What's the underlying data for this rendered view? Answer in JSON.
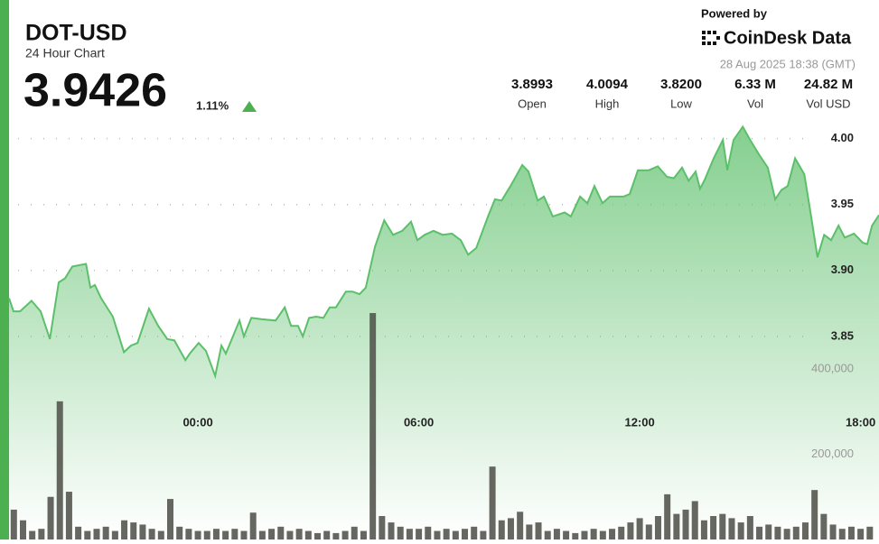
{
  "header": {
    "symbol": "DOT-USD",
    "subtitle": "24 Hour Chart",
    "price": "3.9426",
    "change": "1.11%",
    "powered_by": "Powered by",
    "brand": "CoinDesk Data",
    "timestamp": "28 Aug 2025 18:38 (GMT)"
  },
  "stats": [
    {
      "value": "3.8993",
      "label": "Open"
    },
    {
      "value": "4.0094",
      "label": "High"
    },
    {
      "value": "3.8200",
      "label": "Low"
    },
    {
      "value": "6.33 M",
      "label": "Vol"
    },
    {
      "value": "24.82 M",
      "label": "Vol USD"
    }
  ],
  "chart_data": {
    "type": "area",
    "color": "#5cbf6a",
    "grid": true,
    "xlim": [
      -5.13,
      18.5
    ],
    "xticks": [
      {
        "value": 0,
        "label": "00:00"
      },
      {
        "value": 6,
        "label": "06:00"
      },
      {
        "value": 12,
        "label": "12:00"
      },
      {
        "value": 18,
        "label": "18:00"
      }
    ],
    "ylim": [
      3.696,
      4.01
    ],
    "yticks": [
      3.85,
      {
        "value": 3.9,
        "label": "3.90"
      },
      3.95,
      {
        "value": 4.0,
        "label": "4.00"
      }
    ],
    "y2lim": [
      0,
      971000
    ],
    "y2ticks": [
      {
        "value": 200000,
        "label": "200,000"
      },
      {
        "value": 400000,
        "label": "400,000"
      }
    ],
    "x": [
      -5.13,
      -5.01,
      -4.83,
      -4.52,
      -4.27,
      -4.02,
      -3.78,
      -3.61,
      -3.41,
      -3.04,
      -2.92,
      -2.8,
      -2.63,
      -2.31,
      -2.01,
      -1.82,
      -1.64,
      -1.33,
      -1.08,
      -0.83,
      -0.64,
      -0.34,
      -0.22,
      0.02,
      0.22,
      0.47,
      0.64,
      0.76,
      1.13,
      1.25,
      1.45,
      1.74,
      2.11,
      2.36,
      2.53,
      2.72,
      2.85,
      3.02,
      3.21,
      3.41,
      3.58,
      3.75,
      4.02,
      4.2,
      4.39,
      4.56,
      4.81,
      5.06,
      5.3,
      5.55,
      5.79,
      5.96,
      6.16,
      6.4,
      6.65,
      6.9,
      7.14,
      7.34,
      7.56,
      7.88,
      8.07,
      8.25,
      8.49,
      8.81,
      8.98,
      9.23,
      9.4,
      9.64,
      9.96,
      10.13,
      10.38,
      10.58,
      10.77,
      10.99,
      11.19,
      11.56,
      11.73,
      11.95,
      12.25,
      12.49,
      12.74,
      12.93,
      13.15,
      13.33,
      13.52,
      13.64,
      13.77,
      14.01,
      14.26,
      14.38,
      14.55,
      14.8,
      15.0,
      15.24,
      15.48,
      15.68,
      15.85,
      16.02,
      16.22,
      16.47,
      16.64,
      16.83,
      17.01,
      17.2,
      17.4,
      17.57,
      17.82,
      18.06,
      18.18,
      18.31,
      18.5
    ],
    "values": [
      3.879,
      3.869,
      3.869,
      3.877,
      3.869,
      3.848,
      3.891,
      3.894,
      3.903,
      3.905,
      3.887,
      3.889,
      3.879,
      3.865,
      3.838,
      3.843,
      3.845,
      3.871,
      3.858,
      3.848,
      3.847,
      3.832,
      3.837,
      3.845,
      3.839,
      3.82,
      3.843,
      3.837,
      3.862,
      3.85,
      3.864,
      3.863,
      3.862,
      3.872,
      3.858,
      3.858,
      3.85,
      3.864,
      3.865,
      3.864,
      3.872,
      3.872,
      3.884,
      3.884,
      3.882,
      3.887,
      3.918,
      3.938,
      3.927,
      3.93,
      3.937,
      3.923,
      3.927,
      3.93,
      3.927,
      3.928,
      3.923,
      3.912,
      3.917,
      3.941,
      3.954,
      3.953,
      3.964,
      3.98,
      3.975,
      3.953,
      3.956,
      3.941,
      3.944,
      3.941,
      3.956,
      3.951,
      3.964,
      3.951,
      3.956,
      3.956,
      3.958,
      3.976,
      3.976,
      3.979,
      3.971,
      3.97,
      3.978,
      3.968,
      3.975,
      3.962,
      3.969,
      3.985,
      3.999,
      3.976,
      3.999,
      4.009,
      3.999,
      3.988,
      3.978,
      3.954,
      3.961,
      3.964,
      3.985,
      3.973,
      3.944,
      3.91,
      3.927,
      3.923,
      3.934,
      3.925,
      3.928,
      3.921,
      3.92,
      3.934,
      3.942
    ],
    "volume": {
      "axis": "y2",
      "color": "#55574f",
      "x": [
        -5.0,
        -4.75,
        -4.5,
        -4.25,
        -4.0,
        -3.75,
        -3.5,
        -3.25,
        -3.0,
        -2.75,
        -2.5,
        -2.25,
        -2.0,
        -1.75,
        -1.5,
        -1.25,
        -1.0,
        -0.75,
        -0.5,
        -0.25,
        0,
        0.25,
        0.5,
        0.75,
        1.0,
        1.25,
        1.5,
        1.75,
        2.0,
        2.25,
        2.5,
        2.75,
        3.0,
        3.25,
        3.5,
        3.75,
        4.0,
        4.25,
        4.5,
        4.75,
        5.0,
        5.25,
        5.5,
        5.75,
        6.0,
        6.25,
        6.5,
        6.75,
        7.0,
        7.25,
        7.5,
        7.75,
        8.0,
        8.25,
        8.5,
        8.75,
        9.0,
        9.25,
        9.5,
        9.75,
        10.0,
        10.25,
        10.5,
        10.75,
        11.0,
        11.25,
        11.5,
        11.75,
        12.0,
        12.25,
        12.5,
        12.75,
        13.0,
        13.25,
        13.5,
        13.75,
        14.0,
        14.25,
        14.5,
        14.75,
        15.0,
        15.25,
        15.5,
        15.75,
        16.0,
        16.25,
        16.5,
        16.75,
        17.0,
        17.25,
        17.5,
        17.75,
        18.0,
        18.25
      ],
      "values": [
        70000,
        45000,
        20000,
        25000,
        100000,
        324000,
        112000,
        30000,
        20000,
        25000,
        30000,
        20000,
        45000,
        40000,
        35000,
        25000,
        20000,
        95000,
        30000,
        25000,
        20000,
        20000,
        25000,
        20000,
        25000,
        20000,
        63000,
        20000,
        25000,
        30000,
        20000,
        25000,
        20000,
        15000,
        20000,
        15000,
        20000,
        30000,
        20000,
        531000,
        55000,
        40000,
        30000,
        25000,
        25000,
        30000,
        20000,
        25000,
        20000,
        25000,
        30000,
        20000,
        171000,
        45000,
        50000,
        65000,
        35000,
        40000,
        20000,
        25000,
        20000,
        15000,
        20000,
        25000,
        20000,
        25000,
        30000,
        40000,
        50000,
        35000,
        55000,
        106000,
        60000,
        70000,
        90000,
        45000,
        55000,
        60000,
        50000,
        40000,
        55000,
        30000,
        35000,
        30000,
        25000,
        30000,
        40000,
        116000,
        60000,
        35000,
        25000,
        30000,
        25000,
        30000
      ]
    }
  }
}
